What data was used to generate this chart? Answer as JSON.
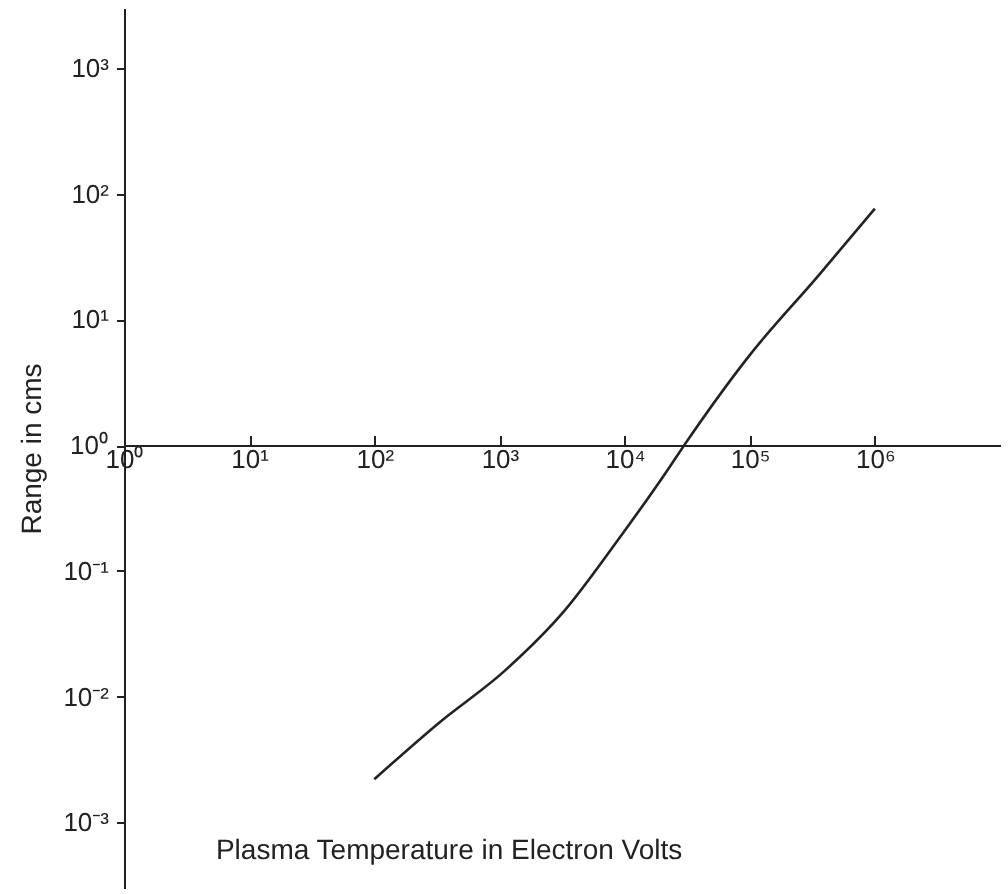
{
  "chart_data": {
    "type": "line",
    "xlabel": "Plasma Temperature in Electron Volts",
    "ylabel": "Range in cms",
    "log": "xy",
    "grid": false,
    "marker": "none",
    "line_style": "solid",
    "x": [
      100,
      330,
      1100,
      3300,
      9000,
      21000,
      30000,
      100000,
      350000,
      1000000
    ],
    "series": [
      {
        "color": "#222222",
        "values": [
          0.0022,
          0.0062,
          0.016,
          0.048,
          0.18,
          0.59,
          1,
          5.2,
          22,
          76
        ]
      }
    ],
    "xlim": [
      1,
      10000000
    ],
    "xticks": [
      {
        "value": 1,
        "label": "10⁰"
      },
      {
        "value": 10,
        "label": "10¹"
      },
      {
        "value": 100,
        "label": "10²"
      },
      {
        "value": 1000,
        "label": "10³"
      },
      {
        "value": 10000,
        "label": "10⁴"
      },
      {
        "value": 100000,
        "label": "10⁵"
      },
      {
        "value": 1000000,
        "label": "10⁶"
      }
    ],
    "ylim": [
      0.0003,
      3000
    ],
    "yticks": [
      {
        "value": 0.001,
        "label": "10⁻³"
      },
      {
        "value": 0.01,
        "label": "10⁻²"
      },
      {
        "value": 0.1,
        "label": "10⁻¹"
      },
      {
        "value": 1,
        "label": "10⁰"
      },
      {
        "value": 10,
        "label": "10¹"
      },
      {
        "value": 100,
        "label": "10²"
      },
      {
        "value": 1000,
        "label": "10³"
      }
    ]
  }
}
